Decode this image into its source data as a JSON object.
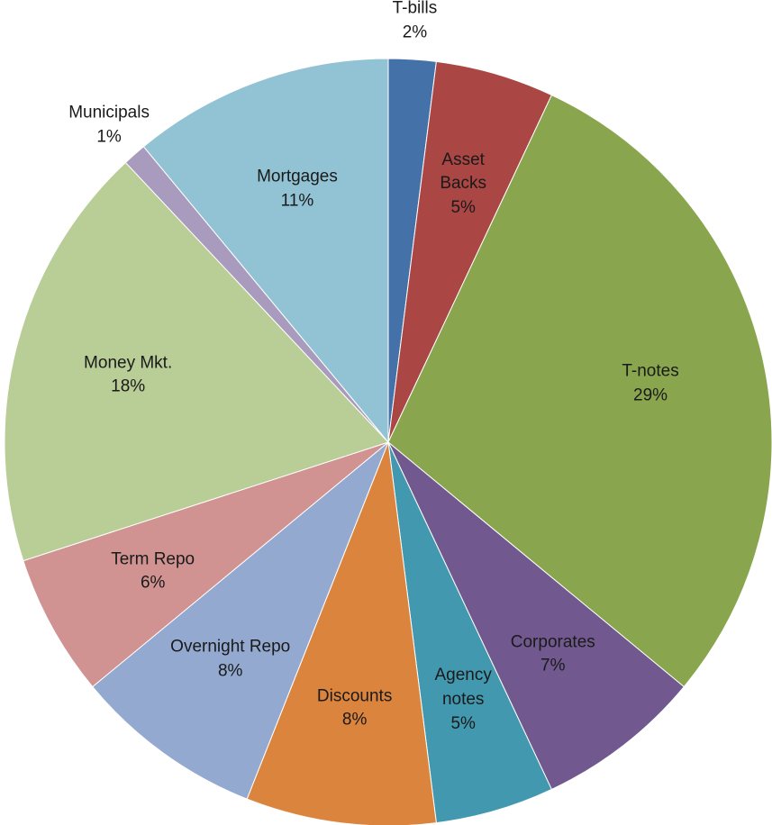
{
  "chart_data": {
    "type": "pie",
    "categories": [
      "T-bills",
      "Asset Backs",
      "T-notes",
      "Corporates",
      "Agency notes",
      "Discounts",
      "Overnight Repo",
      "Term Repo",
      "Money Mkt.",
      "Municipals",
      "Mortgages"
    ],
    "values": [
      2,
      5,
      29,
      7,
      5,
      8,
      8,
      6,
      18,
      1,
      11
    ],
    "value_labels": [
      "2%",
      "5%",
      "29%",
      "7%",
      "5%",
      "8%",
      "8%",
      "6%",
      "18%",
      "1%",
      "11%"
    ],
    "colors": [
      "#4571a9",
      "#aa4644",
      "#89a64e",
      "#71598f",
      "#4298ae",
      "#db843d",
      "#93a9cf",
      "#d09392",
      "#b9cd96",
      "#a99bbd",
      "#92c3d4"
    ]
  }
}
